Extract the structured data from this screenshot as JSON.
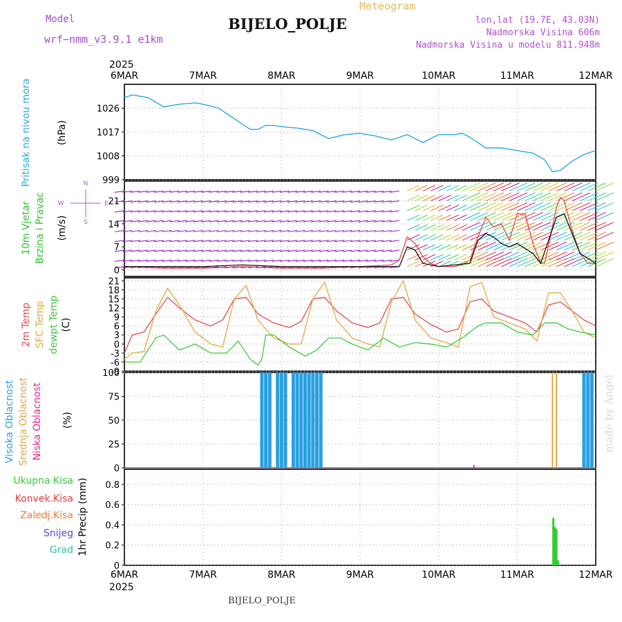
{
  "header": {
    "model_label": "Model",
    "model_name": "wrf−nmm_v3.9.1  e1km",
    "meteogram_label": "Meteogram",
    "station": "BIJELO_POLJE",
    "coords": "lon,lat (19.7E, 43.03N)",
    "altitude": "Nadmorska Visina 606m",
    "model_altitude": "Nadmorska Visina u modelu 811.948m"
  },
  "footer": {
    "station": "BIJELO_POLJE",
    "credit": "made by Angel"
  },
  "colors": {
    "pressure": "#29a8e0",
    "wind_label": "#30c030",
    "wind_speed": "#e23a3a",
    "wind_mean": "#000000",
    "temp_2m": "#e34a4a",
    "temp_sfc": "#e0a840",
    "dewpoint": "#3cc83c",
    "cloud_high": "#2b9fe0",
    "cloud_mid": "#e0a840",
    "cloud_low": "#e0288a",
    "precip_total": "#33cc33",
    "precip_conv": "#e23a3a",
    "precip_frozen": "#f07b33",
    "snow": "#4a4ad0",
    "graupel": "#30c0a0",
    "wind_arrow_calm": "#9a20c0"
  },
  "chart_data": [
    {
      "type": "line",
      "panel": "pressure",
      "xlabel_top_year": "2025",
      "x_ticks": [
        "6MAR",
        "7MAR",
        "8MAR",
        "9MAR",
        "10MAR",
        "11MAR",
        "12MAR"
      ],
      "x_range_days": [
        0,
        6
      ],
      "ylabel": "(hPa)",
      "side_label": "Pritisak na nivou mora",
      "y_ticks": [
        "999",
        "1008",
        "1017",
        "1026"
      ],
      "ylim": [
        999,
        1035
      ],
      "series": [
        {
          "x": [
            0,
            0.1,
            0.3,
            0.5,
            0.7,
            0.9,
            1.0,
            1.2,
            1.4,
            1.6,
            1.7,
            1.8,
            1.9,
            2.0,
            2.2,
            2.4,
            2.6,
            2.8,
            3.0,
            3.2,
            3.4,
            3.6,
            3.8,
            4.0,
            4.2,
            4.3,
            4.4,
            4.6,
            4.8,
            5.0,
            5.2,
            5.35,
            5.45,
            5.55,
            5.7,
            5.85,
            6.0
          ],
          "y": [
            1030,
            1031,
            1030,
            1026.5,
            1027.5,
            1028,
            1027.5,
            1026,
            1022,
            1018,
            1018,
            1019.5,
            1019.5,
            1019,
            1018.5,
            1017.5,
            1014.5,
            1016,
            1016.5,
            1015.5,
            1014,
            1016,
            1013,
            1016,
            1016,
            1016.5,
            1015,
            1011,
            1011,
            1010,
            1009,
            1006.5,
            1002,
            1002.5,
            1006,
            1008.5,
            1010
          ]
        }
      ]
    },
    {
      "type": "line",
      "panel": "wind",
      "ylabel": "(m/s)",
      "side_label_1": "10m Vjetar",
      "side_label_2": "Brzina i Pravac",
      "compass_n": "N",
      "compass_s": "S",
      "compass_w": "W",
      "compass_e": "E",
      "y_ticks": [
        "0",
        "7",
        "14",
        "21"
      ],
      "ylim": [
        -2,
        27
      ],
      "series": [
        {
          "name": "speed",
          "x": [
            0,
            0.5,
            1.0,
            1.5,
            2.0,
            2.5,
            3.0,
            3.4,
            3.5,
            3.6,
            3.7,
            3.8,
            3.9,
            4.0,
            4.2,
            4.3,
            4.4,
            4.5,
            4.6,
            4.7,
            4.8,
            4.9,
            5.0,
            5.1,
            5.2,
            5.3,
            5.35,
            5.5,
            5.55,
            5.6,
            5.7,
            5.8,
            5.9,
            6.0
          ],
          "y": [
            1,
            0.5,
            0.5,
            1,
            0.5,
            0.5,
            1,
            1.5,
            3,
            10,
            8,
            4,
            2,
            1,
            1,
            1.5,
            3,
            10,
            16,
            13,
            14,
            9,
            17,
            17,
            8,
            2,
            2,
            19,
            22,
            21,
            12,
            5,
            2,
            2
          ]
        },
        {
          "name": "mean",
          "x": [
            0,
            1.0,
            1.5,
            2.0,
            3.0,
            3.5,
            3.6,
            3.7,
            3.8,
            4.0,
            4.4,
            4.5,
            4.6,
            4.7,
            4.8,
            4.9,
            5.0,
            5.2,
            5.3,
            5.5,
            5.6,
            5.8,
            6.0
          ],
          "y": [
            1,
            1,
            1.5,
            1,
            1,
            1,
            7,
            6,
            2,
            1,
            2,
            9,
            11,
            10,
            8,
            7,
            8,
            5,
            2,
            16,
            17,
            5,
            2
          ]
        }
      ]
    },
    {
      "type": "line",
      "panel": "temperature",
      "ylabel": "(C)",
      "side_label_1": "2m Temp",
      "side_label_2": "SFC Temp",
      "side_label_3": "dewpt Temp",
      "y_ticks": [
        "-9",
        "-6",
        "-3",
        "0",
        "3",
        "6",
        "9",
        "12",
        "15",
        "18",
        "21"
      ],
      "ylim": [
        -9,
        22
      ],
      "series": [
        {
          "name": "2m Temp",
          "x": [
            0,
            0.1,
            0.25,
            0.4,
            0.55,
            0.7,
            0.9,
            1.1,
            1.25,
            1.4,
            1.55,
            1.7,
            1.9,
            2.1,
            2.25,
            2.4,
            2.55,
            2.7,
            2.9,
            3.1,
            3.25,
            3.4,
            3.55,
            3.7,
            3.9,
            4.1,
            4.25,
            4.4,
            4.55,
            4.7,
            4.9,
            5.1,
            5.25,
            5.4,
            5.55,
            5.7,
            5.85,
            6.0
          ],
          "y": [
            -3,
            3,
            4,
            10,
            15.5,
            12,
            8,
            6,
            8,
            15,
            15.5,
            10,
            7,
            5.5,
            7.5,
            15,
            15.5,
            11,
            7,
            5.5,
            7,
            15,
            15.5,
            10,
            6.5,
            4,
            5,
            14,
            15,
            11,
            9,
            7,
            4,
            13,
            14,
            11,
            8,
            6
          ]
        },
        {
          "name": "SFC Temp",
          "x": [
            0,
            0.1,
            0.25,
            0.4,
            0.55,
            0.7,
            0.9,
            1.1,
            1.25,
            1.4,
            1.55,
            1.7,
            1.9,
            2.1,
            2.25,
            2.4,
            2.55,
            2.7,
            2.9,
            3.1,
            3.25,
            3.4,
            3.55,
            3.7,
            3.9,
            4.1,
            4.25,
            4.4,
            4.55,
            4.7,
            4.9,
            5.1,
            5.25,
            5.4,
            5.55,
            5.7,
            5.85,
            6.0
          ],
          "y": [
            -5,
            -3,
            -2.5,
            11,
            18.5,
            13,
            4,
            0,
            -1,
            15,
            19.5,
            8,
            2,
            0,
            0,
            15,
            20.5,
            8,
            2,
            0,
            -1,
            14,
            21,
            8,
            2,
            0.5,
            -1,
            19,
            20.5,
            9,
            7,
            5,
            1,
            17,
            17,
            11,
            4,
            2
          ]
        },
        {
          "name": "dewpt Temp",
          "x": [
            0,
            0.2,
            0.4,
            0.5,
            0.7,
            0.9,
            1.1,
            1.3,
            1.45,
            1.6,
            1.7,
            1.75,
            1.8,
            1.9,
            2.1,
            2.3,
            2.45,
            2.6,
            2.75,
            2.9,
            3.1,
            3.3,
            3.5,
            3.7,
            3.9,
            4.1,
            4.3,
            4.5,
            4.6,
            4.8,
            5.0,
            5.2,
            5.35,
            5.5,
            5.65,
            5.8,
            6.0
          ],
          "y": [
            -6,
            -6,
            2,
            3,
            -2,
            0,
            -3,
            -3,
            1,
            -5,
            -7,
            -5,
            3,
            3,
            -1,
            -4,
            -2,
            2,
            2,
            0,
            -2,
            2,
            -1,
            0.5,
            0,
            -1,
            2,
            6,
            7,
            7,
            4,
            3,
            7,
            7,
            5,
            4,
            3
          ]
        }
      ]
    },
    {
      "type": "bar",
      "panel": "cloud",
      "ylabel": "(%)",
      "side_label_1": "Visoka Oblacnost",
      "side_label_2": "Srednja Oblacnost",
      "side_label_3": "Niska Oblacnost",
      "y_ticks": [
        "0",
        "25",
        "50",
        "75",
        "100"
      ],
      "ylim": [
        0,
        100
      ],
      "series": [
        {
          "name": "Visoka Oblacnost",
          "x": [
            1.75,
            1.8,
            1.85,
            1.95,
            2.0,
            2.05,
            2.15,
            2.2,
            2.25,
            2.3,
            2.35,
            2.4,
            2.45,
            2.5,
            5.85,
            5.9,
            5.95
          ],
          "values": [
            100,
            100,
            100,
            100,
            100,
            100,
            100,
            100,
            100,
            100,
            100,
            100,
            100,
            100,
            100,
            100,
            100
          ]
        },
        {
          "name": "Srednja Oblacnost",
          "x": [
            5.45,
            5.5
          ],
          "values": [
            100,
            100
          ]
        },
        {
          "name": "Niska Oblacnost",
          "x": [
            4.45
          ],
          "values": [
            3
          ]
        }
      ]
    },
    {
      "type": "bar",
      "panel": "precip",
      "ylabel": "1hr Precip (mm)",
      "legend": [
        "Ukupna  Kisa",
        "Konvek.Kisa",
        "Zaledj.Kisa",
        "Snijeg",
        "Grad"
      ],
      "y_ticks": [
        "0",
        "0.2",
        "0.4",
        "0.6",
        "0.8"
      ],
      "ylim": [
        0,
        0.95
      ],
      "x_ticks_bottom": [
        "6MAR",
        "7MAR",
        "8MAR",
        "9MAR",
        "10MAR",
        "11MAR",
        "12MAR"
      ],
      "xlabel_bottom_year": "2025",
      "series": [
        {
          "name": "Ukupna  Kisa",
          "x": [
            5.46,
            5.48,
            5.5,
            5.52
          ],
          "values": [
            0.47,
            0.38,
            0.36,
            0.05
          ]
        }
      ]
    }
  ]
}
